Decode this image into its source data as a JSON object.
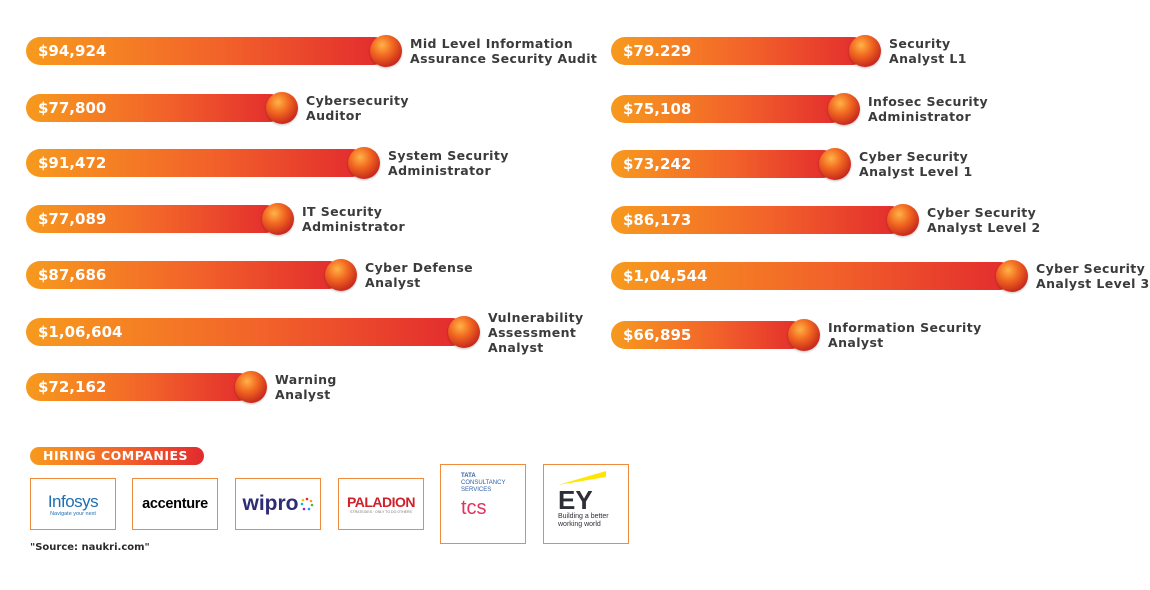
{
  "chart_data": {
    "type": "bar",
    "orientation": "horizontal",
    "columns": [
      {
        "items": [
          {
            "value_label": "$94,924",
            "value": 94924,
            "name": [
              "Mid Level Information",
              "Assurance Security Audit"
            ]
          },
          {
            "value_label": "$77,800",
            "value": 77800,
            "name": [
              "Cybersecurity",
              "Auditor"
            ]
          },
          {
            "value_label": "$91,472",
            "value": 91472,
            "name": [
              "System Security",
              "Administrator"
            ]
          },
          {
            "value_label": "$77,089",
            "value": 77089,
            "name": [
              "IT Security",
              "Administrator"
            ]
          },
          {
            "value_label": "$87,686",
            "value": 87686,
            "name": [
              "Cyber Defense",
              "Analyst"
            ]
          },
          {
            "value_label": "$1,06,604",
            "value": 106604,
            "name": [
              "Vulnerability",
              "Assessment",
              "Analyst"
            ]
          },
          {
            "value_label": "$72,162",
            "value": 72162,
            "name": [
              "Warning",
              "Analyst"
            ]
          }
        ]
      },
      {
        "items": [
          {
            "value_label": "$79.229",
            "value": 79229,
            "name": [
              "Security",
              "Analyst L1"
            ]
          },
          {
            "value_label": "$75,108",
            "value": 75108,
            "name": [
              "Infosec Security",
              "Administrator"
            ]
          },
          {
            "value_label": "$73,242",
            "value": 73242,
            "name": [
              "Cyber Security",
              "Analyst Level 1"
            ]
          },
          {
            "value_label": "$86,173",
            "value": 86173,
            "name": [
              "Cyber Security",
              "Analyst Level 2"
            ]
          },
          {
            "value_label": "$1,04,544",
            "value": 104544,
            "name": [
              "Cyber Security",
              "Analyst Level 3"
            ]
          },
          {
            "value_label": "$66,895",
            "value": 66895,
            "name": [
              "Information Security",
              "Analyst"
            ]
          }
        ]
      }
    ],
    "colors": {
      "bar_start": "#f79a1e",
      "bar_mid": "#f2612a",
      "bar_end": "#e22a2e",
      "label": "#3b3b3b"
    }
  },
  "hiring": {
    "title": "HIRING COMPANIES",
    "companies": [
      {
        "name": "Infosys",
        "tagline": "Navigate your next",
        "color": "#1f6fb4"
      },
      {
        "name": "accenture",
        "color": "#000000"
      },
      {
        "name": "wipro",
        "color": "#2e2b77"
      },
      {
        "name": "PALADION",
        "tagline": "STRATEGIES · ONLY TO DO OTHERS",
        "color": "#d0202a"
      },
      {
        "name": "tcs",
        "top": [
          "TATA",
          "CONSULTANCY",
          "SERVICES"
        ],
        "color": "#e0335f"
      },
      {
        "name": "EY",
        "tagline": [
          "Building a better",
          "working world"
        ],
        "color": "#2e2e38",
        "accent": "#ffe600"
      }
    ]
  },
  "source": "\"Source: naukri.com\""
}
